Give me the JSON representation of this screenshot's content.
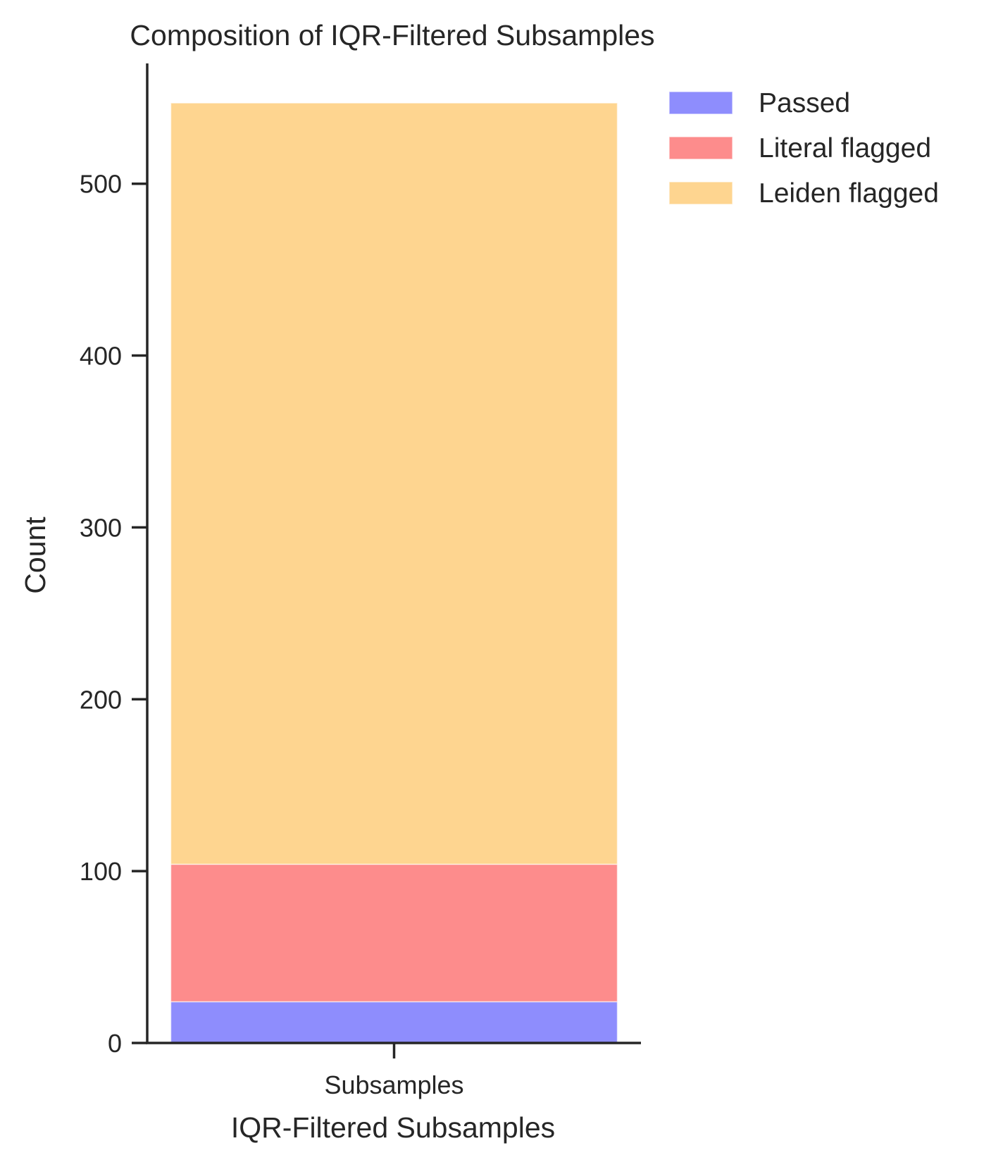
{
  "chart_data": {
    "type": "bar",
    "stacked": true,
    "title": "Composition of IQR-Filtered Subsamples",
    "xlabel": "IQR-Filtered Subsamples",
    "ylabel": "Count",
    "categories": [
      "Subsamples"
    ],
    "ylim": [
      0,
      570
    ],
    "yticks": [
      0,
      100,
      200,
      300,
      400,
      500
    ],
    "grid": false,
    "legend_position": "outside-right",
    "series": [
      {
        "name": "Passed",
        "values": [
          24
        ],
        "color": "#8e8dfd"
      },
      {
        "name": "Literal flagged",
        "values": [
          80
        ],
        "color": "#fd8c8c"
      },
      {
        "name": "Leiden flagged",
        "values": [
          443
        ],
        "color": "#fed590"
      }
    ]
  }
}
